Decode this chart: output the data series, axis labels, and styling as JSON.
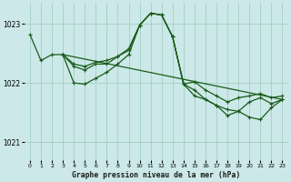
{
  "title": "Graphe pression niveau de la mer (hPa)",
  "bg_color": "#cce8e8",
  "grid_color": "#99ccbb",
  "line_color": "#1a5c1a",
  "ylim": [
    1020.7,
    1023.35
  ],
  "yticks": [
    1021,
    1022,
    1023
  ],
  "xlim": [
    -0.5,
    23.5
  ],
  "xticks": [
    0,
    1,
    2,
    3,
    4,
    5,
    6,
    7,
    8,
    9,
    10,
    11,
    12,
    13,
    14,
    15,
    16,
    17,
    18,
    19,
    20,
    21,
    22,
    23
  ],
  "lines": [
    {
      "x": [
        0,
        1,
        2,
        3,
        4,
        5,
        6,
        7,
        8,
        9,
        10,
        11,
        12,
        13,
        14,
        15,
        16,
        17,
        18,
        19,
        20,
        21,
        22,
        23
      ],
      "y": [
        1022.82,
        1022.38,
        1022.48,
        1022.48,
        1022.28,
        1022.22,
        1022.32,
        1022.32,
        1022.45,
        1022.58,
        1022.98,
        1023.18,
        1023.15,
        1022.78,
        1021.98,
        1021.78,
        1021.72,
        1021.62,
        1021.55,
        1021.52,
        1021.42,
        1021.38,
        1021.58,
        1021.72
      ]
    },
    {
      "x": [
        3,
        4,
        5,
        6,
        7,
        8,
        9,
        10,
        11,
        12,
        13,
        14,
        15,
        16,
        17,
        18,
        19,
        20,
        21,
        22,
        23
      ],
      "y": [
        1022.48,
        1022.0,
        1021.98,
        1022.08,
        1022.18,
        1022.32,
        1022.48,
        1022.98,
        1023.18,
        1023.15,
        1022.78,
        1021.98,
        1021.88,
        1021.72,
        1021.62,
        1021.45,
        1021.52,
        1021.68,
        1021.75,
        1021.65,
        1021.72
      ]
    },
    {
      "x": [
        3,
        4,
        5,
        6,
        7,
        8,
        9,
        10,
        11,
        12,
        13,
        14,
        15,
        16,
        17,
        18,
        19,
        20,
        21,
        22,
        23
      ],
      "y": [
        1022.48,
        1022.32,
        1022.28,
        1022.35,
        1022.38,
        1022.45,
        1022.55,
        1022.98,
        1023.18,
        1023.15,
        1022.78,
        1021.98,
        1022.02,
        1021.88,
        1021.78,
        1021.68,
        1021.75,
        1021.78,
        1021.82,
        1021.75,
        1021.78
      ]
    },
    {
      "x": [
        3,
        23
      ],
      "y": [
        1022.48,
        1021.72
      ]
    }
  ]
}
